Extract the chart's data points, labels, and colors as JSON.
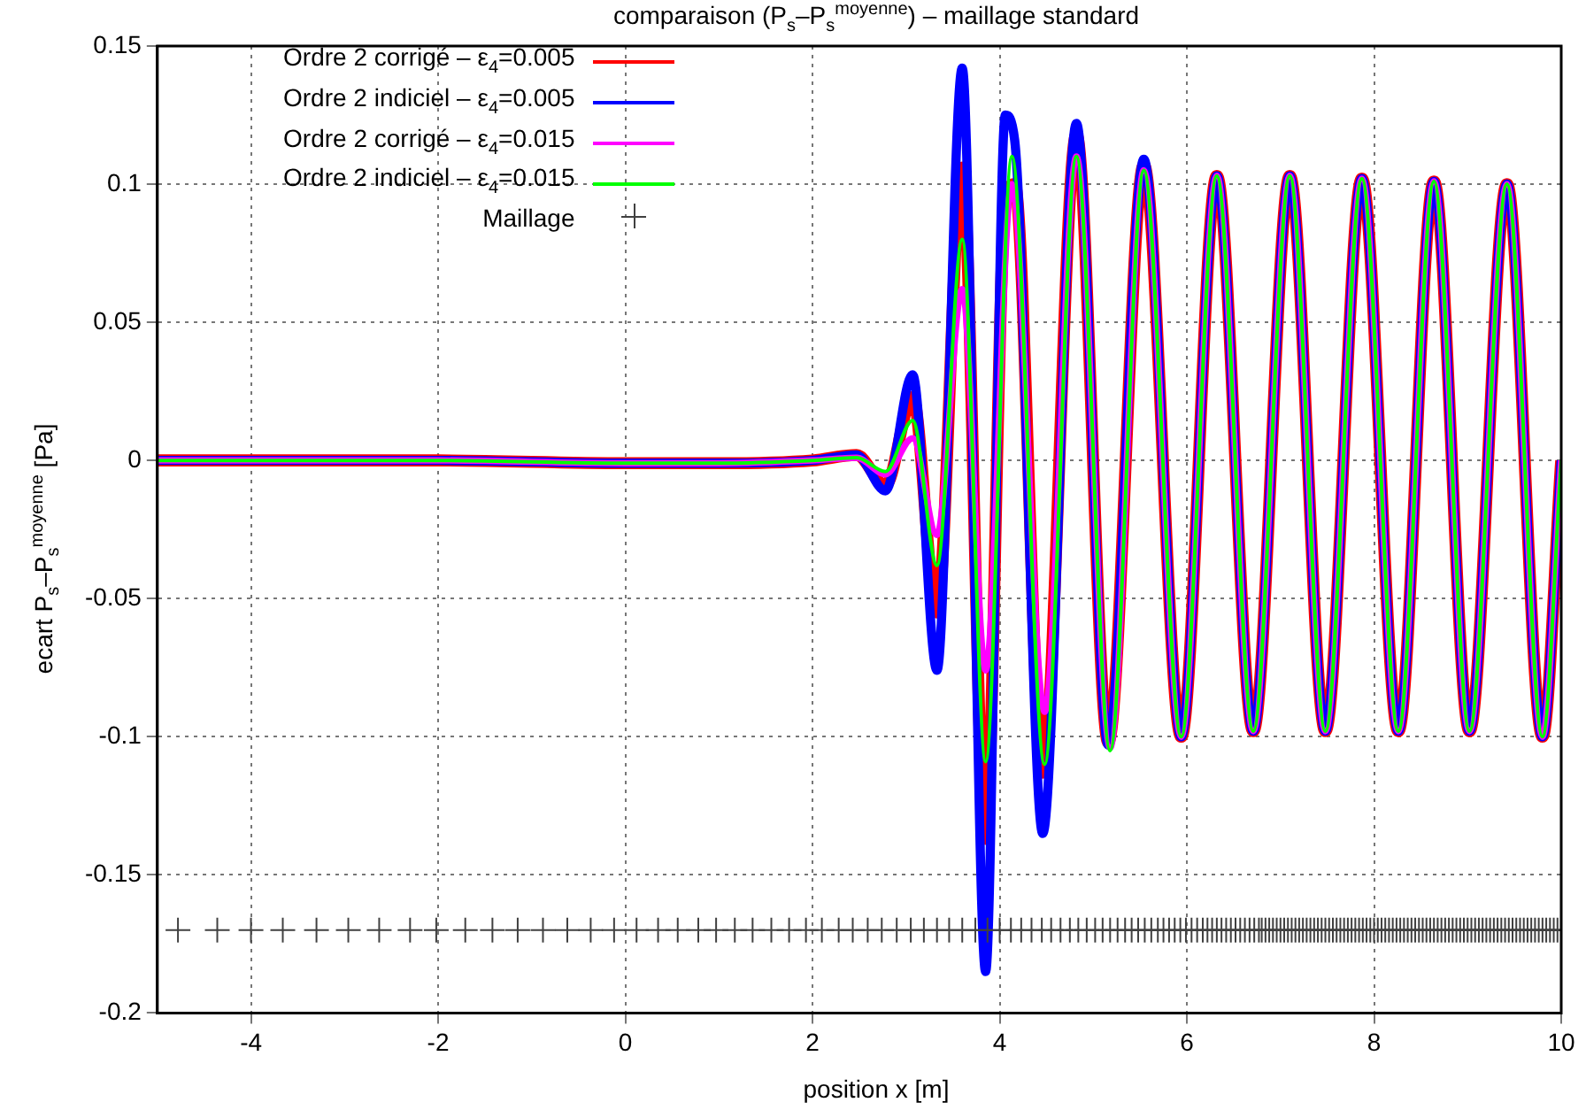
{
  "chart_data": {
    "type": "line",
    "title": "comparaison (P$_{s}$–P$_{s}$$^{moyenne}$) – maillage standard",
    "xlabel": "position x [m]",
    "ylabel": "ecart P$_{s}$–P$_{s}$$^{moyenne}$ [Pa]",
    "xlim": [
      -5,
      10
    ],
    "xticks": [
      -4,
      -2,
      0,
      2,
      4,
      6,
      8,
      10
    ],
    "ylim": [
      -0.2,
      0.15
    ],
    "yticks": [
      -0.2,
      -0.15,
      -0.1,
      -0.05,
      0,
      0.05,
      0.1,
      0.15
    ],
    "grid": true,
    "legend": "top left",
    "line_style": "solid",
    "marker": "none",
    "series": [
      {
        "name": "Ordre 2 corrigé – ε$_{4}$=0.005",
        "color": "#ff0000",
        "x": [
          -5,
          -2,
          0,
          1,
          2,
          2.47,
          2.78,
          3.07,
          3.33,
          3.6,
          3.85,
          4.06,
          4.16,
          4.46,
          4.82,
          5.16,
          5.54,
          5.94,
          6.32,
          6.71,
          7.1,
          7.48,
          7.87,
          8.26,
          8.64,
          9.02,
          9.42,
          9.8,
          10
        ],
        "values": [
          0,
          0,
          -0.001,
          -0.001,
          0,
          0.002,
          -0.009,
          0.023,
          -0.055,
          0.106,
          -0.137,
          0.094,
          0.1,
          -0.113,
          0.118,
          -0.102,
          0.107,
          -0.1,
          0.103,
          -0.098,
          0.103,
          -0.098,
          0.102,
          -0.098,
          0.101,
          -0.098,
          0.1,
          -0.1,
          0
        ]
      },
      {
        "name": "Ordre 2 indiciel – ε$_{4}$=0.005",
        "color": "#0000ff",
        "x": [
          -5,
          -2,
          0,
          1,
          2,
          2.47,
          2.78,
          3.07,
          3.33,
          3.6,
          3.85,
          4.06,
          4.16,
          4.46,
          4.82,
          5.16,
          5.54,
          5.94,
          6.32,
          6.71,
          7.1,
          7.48,
          7.87,
          8.26,
          8.64,
          9.02,
          9.42,
          9.8,
          10
        ],
        "values": [
          0,
          0,
          -0.001,
          -0.001,
          0,
          0.002,
          -0.011,
          0.031,
          -0.076,
          0.142,
          -0.185,
          0.125,
          0.116,
          -0.135,
          0.122,
          -0.103,
          0.109,
          -0.1,
          0.103,
          -0.098,
          0.103,
          -0.098,
          0.102,
          -0.098,
          0.101,
          -0.098,
          0.1,
          -0.1,
          0
        ]
      },
      {
        "name": "Ordre 2 corrigé – ε$_{4}$=0.015",
        "color": "#ff00ff",
        "x": [
          -5,
          -2,
          0,
          1,
          2,
          2.47,
          2.78,
          3.07,
          3.33,
          3.6,
          3.85,
          4.13,
          4.48,
          4.82,
          5.18,
          5.54,
          5.94,
          6.32,
          6.71,
          7.1,
          7.48,
          7.87,
          8.26,
          8.64,
          9.02,
          9.42,
          9.8,
          10
        ],
        "values": [
          0,
          0,
          -0.001,
          -0.001,
          0,
          0.001,
          -0.005,
          0.008,
          -0.027,
          0.062,
          -0.076,
          0.1,
          -0.091,
          0.11,
          -0.104,
          0.105,
          -0.1,
          0.103,
          -0.098,
          0.103,
          -0.098,
          0.102,
          -0.098,
          0.101,
          -0.098,
          0.1,
          -0.1,
          0
        ]
      },
      {
        "name": "Ordre 2 indiciel – ε$_{4}$=0.015",
        "color": "#00ff00",
        "x": [
          -5,
          -2,
          0,
          1,
          2,
          2.47,
          2.78,
          3.07,
          3.33,
          3.6,
          3.85,
          4.13,
          4.48,
          4.82,
          5.18,
          5.54,
          5.94,
          6.32,
          6.71,
          7.1,
          7.48,
          7.87,
          8.26,
          8.64,
          9.02,
          9.42,
          9.8,
          10
        ],
        "values": [
          0,
          0,
          -0.001,
          -0.001,
          0,
          0.001,
          -0.004,
          0.0145,
          -0.038,
          0.08,
          -0.109,
          0.11,
          -0.11,
          0.11,
          -0.105,
          0.105,
          -0.1,
          0.103,
          -0.098,
          0.103,
          -0.098,
          0.102,
          -0.098,
          0.101,
          -0.098,
          0.1,
          -0.1,
          0
        ]
      },
      {
        "name": "Maillage",
        "type": "scatter",
        "marker": "cross",
        "color": "#404040",
        "x": [
          -4.78,
          -4.36,
          -4.0,
          -3.66,
          -3.3,
          -2.96,
          -2.63,
          -2.3,
          -2.02,
          -1.71,
          -1.42,
          -1.15,
          -0.88,
          -0.62,
          -0.37,
          -0.12,
          0.12,
          0.35,
          0.56,
          0.78,
          0.97,
          1.17,
          1.36,
          1.56,
          1.75,
          1.93,
          2.1,
          2.28,
          2.43,
          2.59,
          2.74,
          2.9,
          3.05,
          3.19,
          3.33,
          3.46,
          3.6,
          3.74,
          3.87,
          4.0,
          4.12,
          4.23,
          4.34,
          4.45,
          4.55,
          4.65,
          4.75,
          4.84,
          4.93,
          5.02,
          5.1,
          5.18,
          5.26,
          5.34,
          5.41,
          5.48,
          5.55,
          5.62,
          5.69,
          5.75,
          5.81,
          5.87,
          5.93,
          5.99,
          6.05,
          6.11,
          6.17,
          6.22,
          6.27,
          6.32,
          6.37,
          6.42,
          6.47,
          6.52,
          6.57,
          6.62,
          6.67,
          6.72,
          6.77,
          6.8,
          6.84,
          6.88,
          6.92,
          6.96,
          7.0,
          7.04,
          7.08,
          7.12,
          7.16,
          7.2,
          7.24,
          7.28,
          7.32,
          7.36,
          7.4,
          7.44,
          7.48,
          7.52,
          7.56,
          7.6,
          7.64,
          7.68,
          7.72,
          7.76,
          7.8,
          7.84,
          7.88,
          7.92,
          7.96,
          8.0,
          8.04,
          8.08,
          8.12,
          8.16,
          8.2,
          8.24,
          8.28,
          8.32,
          8.36,
          8.4,
          8.44,
          8.48,
          8.52,
          8.56,
          8.6,
          8.64,
          8.68,
          8.72,
          8.76,
          8.8,
          8.84,
          8.88,
          8.92,
          8.96,
          9.0,
          9.04,
          9.08,
          9.12,
          9.16,
          9.2,
          9.24,
          9.28,
          9.32,
          9.36,
          9.4,
          9.44,
          9.48,
          9.52,
          9.56,
          9.6,
          9.64,
          9.68,
          9.72,
          9.76,
          9.8,
          9.84,
          9.88,
          9.92,
          9.96,
          10.0
        ],
        "values": [
          -0.17,
          -0.17,
          -0.17,
          -0.17,
          -0.17,
          -0.17,
          -0.17,
          -0.17,
          -0.17,
          -0.17,
          -0.17,
          -0.17,
          -0.17,
          -0.17,
          -0.17,
          -0.17,
          -0.17,
          -0.17,
          -0.17,
          -0.17,
          -0.17,
          -0.17,
          -0.17,
          -0.17,
          -0.17,
          -0.17,
          -0.17,
          -0.17,
          -0.17,
          -0.17,
          -0.17,
          -0.17,
          -0.17,
          -0.17,
          -0.17,
          -0.17,
          -0.17,
          -0.17,
          -0.17,
          -0.17,
          -0.17,
          -0.17,
          -0.17,
          -0.17,
          -0.17,
          -0.17,
          -0.17,
          -0.17,
          -0.17,
          -0.17,
          -0.17,
          -0.17,
          -0.17,
          -0.17,
          -0.17,
          -0.17,
          -0.17,
          -0.17,
          -0.17,
          -0.17,
          -0.17,
          -0.17,
          -0.17,
          -0.17,
          -0.17,
          -0.17,
          -0.17,
          -0.17,
          -0.17,
          -0.17,
          -0.17,
          -0.17,
          -0.17,
          -0.17,
          -0.17,
          -0.17,
          -0.17,
          -0.17,
          -0.17,
          -0.17,
          -0.17,
          -0.17,
          -0.17,
          -0.17,
          -0.17,
          -0.17,
          -0.17,
          -0.17,
          -0.17,
          -0.17,
          -0.17,
          -0.17,
          -0.17,
          -0.17,
          -0.17,
          -0.17,
          -0.17,
          -0.17,
          -0.17,
          -0.17,
          -0.17,
          -0.17,
          -0.17,
          -0.17,
          -0.17,
          -0.17,
          -0.17,
          -0.17,
          -0.17,
          -0.17,
          -0.17,
          -0.17,
          -0.17,
          -0.17,
          -0.17,
          -0.17,
          -0.17,
          -0.17,
          -0.17,
          -0.17,
          -0.17,
          -0.17,
          -0.17,
          -0.17,
          -0.17,
          -0.17,
          -0.17,
          -0.17,
          -0.17,
          -0.17,
          -0.17,
          -0.17,
          -0.17,
          -0.17,
          -0.17,
          -0.17,
          -0.17,
          -0.17,
          -0.17,
          -0.17,
          -0.17,
          -0.17,
          -0.17,
          -0.17,
          -0.17,
          -0.17,
          -0.17,
          -0.17,
          -0.17,
          -0.17,
          -0.17,
          -0.17,
          -0.17,
          -0.17,
          -0.17,
          -0.17,
          -0.17,
          -0.17,
          -0.17,
          -0.17
        ]
      }
    ]
  }
}
